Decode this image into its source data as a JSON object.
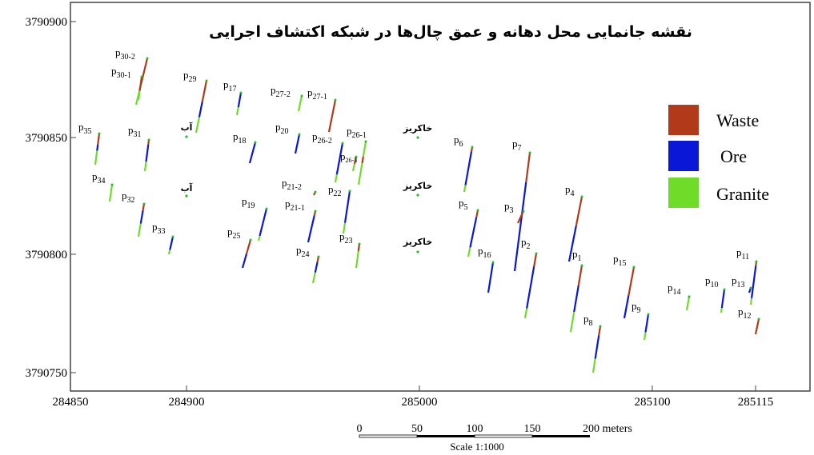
{
  "map": {
    "title": "نقشه جانمایی محل دهانه و عمق چال‌ها در شبکه اکتشاف اجرایی",
    "colors": {
      "waste": "#b03a1a",
      "ore": "#0a17d6",
      "granite": "#6fdc2a",
      "collar": "#22c022",
      "frame": "#444444"
    },
    "x_ticks": [
      "284850",
      "284900",
      "285000",
      "285100",
      "285115"
    ],
    "y_ticks": [
      "3790900",
      "3790850",
      "3790800",
      "3790750"
    ],
    "legend": [
      {
        "label": "Waste",
        "color": "#b03a1a"
      },
      {
        "label": "Ore",
        "color": "#0a17d6"
      },
      {
        "label": "Granite",
        "color": "#6fdc2a"
      }
    ],
    "scale_bar": {
      "ticks": [
        "0",
        "50",
        "100",
        "150",
        "200 meters"
      ],
      "caption": "Scale 1:1000"
    },
    "wells": [
      {
        "name": "p",
        "sub": "35"
      },
      {
        "name": "p",
        "sub": "30-2"
      },
      {
        "name": "p",
        "sub": "30-1"
      },
      {
        "name": "p",
        "sub": "31"
      },
      {
        "name": "p",
        "sub": "34"
      },
      {
        "name": "p",
        "sub": "32"
      },
      {
        "name": "p",
        "sub": "33"
      },
      {
        "name": "p",
        "sub": "29"
      },
      {
        "name": "p",
        "sub": "17"
      },
      {
        "name": "p",
        "sub": "18"
      },
      {
        "name": "p",
        "sub": "19"
      },
      {
        "name": "p",
        "sub": "25"
      },
      {
        "name": "p",
        "sub": "27-2"
      },
      {
        "name": "p",
        "sub": "27-1"
      },
      {
        "name": "p",
        "sub": "20"
      },
      {
        "name": "p",
        "sub": "26-2"
      },
      {
        "name": "p",
        "sub": "26-1"
      },
      {
        "name": "p",
        "sub": "26-3"
      },
      {
        "name": "p",
        "sub": "21-2"
      },
      {
        "name": "p",
        "sub": "21-1"
      },
      {
        "name": "p",
        "sub": "22"
      },
      {
        "name": "p",
        "sub": "23"
      },
      {
        "name": "p",
        "sub": "24"
      },
      {
        "name": "p",
        "sub": "6"
      },
      {
        "name": "p",
        "sub": "5"
      },
      {
        "name": "p",
        "sub": "16"
      },
      {
        "name": "p",
        "sub": "7"
      },
      {
        "name": "p",
        "sub": "3"
      },
      {
        "name": "p",
        "sub": "2"
      },
      {
        "name": "p",
        "sub": "4"
      },
      {
        "name": "p",
        "sub": "1"
      },
      {
        "name": "p",
        "sub": "8"
      },
      {
        "name": "p",
        "sub": "15"
      },
      {
        "name": "p",
        "sub": "9"
      },
      {
        "name": "p",
        "sub": "14"
      },
      {
        "name": "p",
        "sub": "10"
      },
      {
        "name": "p",
        "sub": "13"
      },
      {
        "name": "p",
        "sub": "11"
      },
      {
        "name": "p",
        "sub": "12"
      }
    ],
    "landmarks": [
      {
        "label": "آب"
      },
      {
        "label": "آب"
      },
      {
        "label": "خاکریز"
      },
      {
        "label": "خاکریز"
      },
      {
        "label": "خاکریز"
      }
    ]
  }
}
